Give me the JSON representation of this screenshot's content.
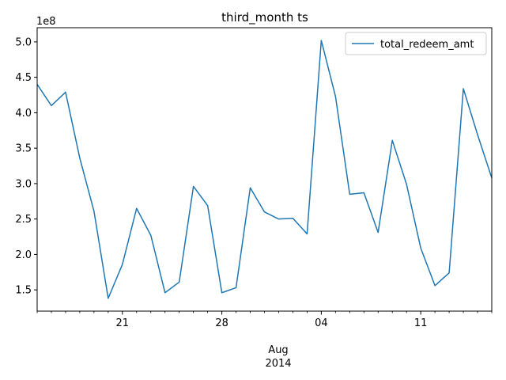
{
  "chart_data": {
    "type": "line",
    "title": "third_month ts",
    "y_offset_label": "1e8",
    "x_month_label": "Aug",
    "x_year_label": "2014",
    "x_range": [
      "2014-07-15",
      "2014-08-16"
    ],
    "ylim": [
      1.2,
      5.2
    ],
    "y_scale_factor": 100000000,
    "y_ticks": [
      "1.5",
      "2.0",
      "2.5",
      "3.0",
      "3.5",
      "4.0",
      "4.5",
      "5.0"
    ],
    "x_ticks": [
      {
        "date": "2014-07-21",
        "label": "21"
      },
      {
        "date": "2014-07-28",
        "label": "28"
      },
      {
        "date": "2014-08-04",
        "label": "04"
      },
      {
        "date": "2014-08-11",
        "label": "11"
      }
    ],
    "legend_position": "top-right",
    "grid": false,
    "series": [
      {
        "name": "total_redeem_amt",
        "color": "#1f77b4",
        "x": [
          "2014-07-15",
          "2014-07-16",
          "2014-07-17",
          "2014-07-18",
          "2014-07-19",
          "2014-07-20",
          "2014-07-21",
          "2014-07-22",
          "2014-07-23",
          "2014-07-24",
          "2014-07-25",
          "2014-07-26",
          "2014-07-27",
          "2014-07-28",
          "2014-07-29",
          "2014-07-30",
          "2014-07-31",
          "2014-08-01",
          "2014-08-02",
          "2014-08-03",
          "2014-08-04",
          "2014-08-05",
          "2014-08-06",
          "2014-08-07",
          "2014-08-08",
          "2014-08-09",
          "2014-08-10",
          "2014-08-11",
          "2014-08-12",
          "2014-08-13",
          "2014-08-14",
          "2014-08-15",
          "2014-08-16"
        ],
        "values": [
          4.4,
          4.1,
          4.29,
          3.36,
          2.61,
          1.38,
          1.86,
          2.65,
          2.27,
          1.46,
          1.61,
          2.96,
          2.69,
          1.46,
          1.53,
          2.94,
          2.6,
          2.5,
          2.51,
          2.29,
          5.02,
          4.23,
          2.85,
          2.87,
          2.31,
          3.61,
          2.99,
          2.09,
          1.56,
          1.74,
          4.34,
          3.69,
          3.08
        ]
      }
    ]
  }
}
